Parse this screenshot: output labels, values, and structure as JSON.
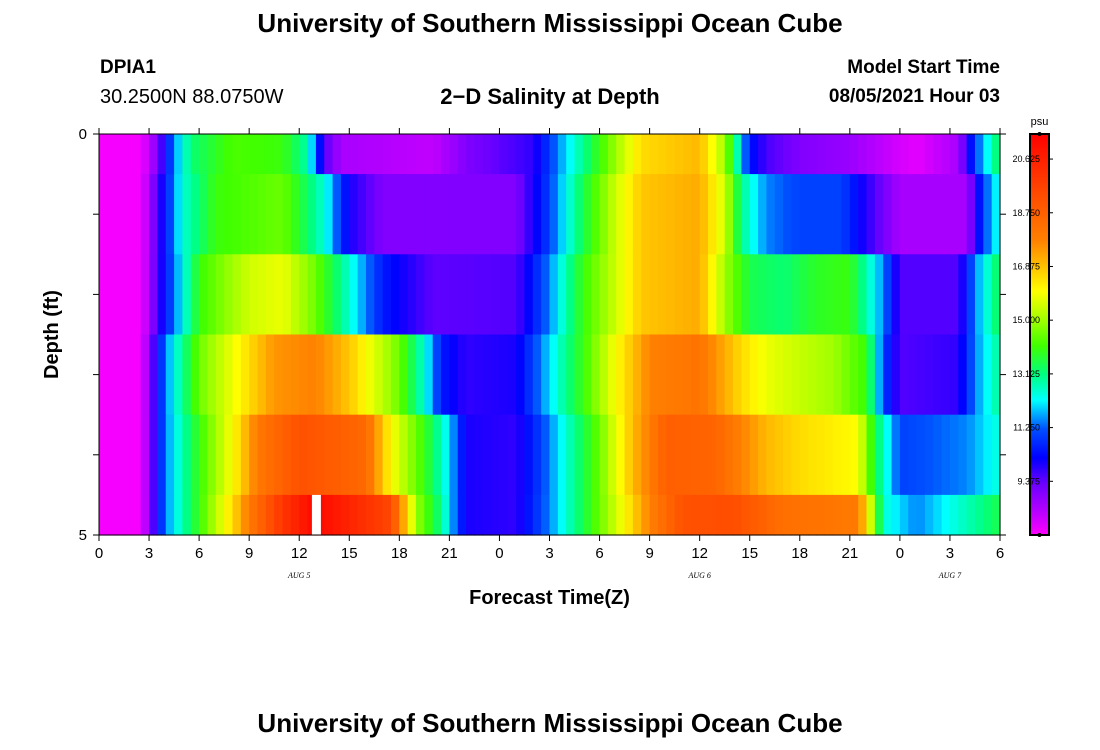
{
  "header": {
    "title": "University of Southern Mississippi Ocean Cube",
    "station_id": "DPIA1",
    "coordinates": "30.2500N  88.0750W",
    "subtitle": "2−D Salinity at Depth",
    "model_start_label": "Model Start Time",
    "model_start_value": "08/05/2021 Hour 03"
  },
  "footer": {
    "title": "University of Southern Mississippi Ocean Cube"
  },
  "chart_data": {
    "type": "heatmap",
    "title": "2-D Salinity at Depth",
    "xlabel": "Forecast Time(Z)",
    "ylabel": "Depth (ft)",
    "x_tick_labels": [
      "0",
      "3",
      "6",
      "9",
      "12",
      "15",
      "18",
      "21",
      "0",
      "3",
      "6",
      "9",
      "12",
      "15",
      "18",
      "21",
      "0",
      "3",
      "6"
    ],
    "x_hours": [
      0,
      3,
      6,
      9,
      12,
      15,
      18,
      21,
      24,
      27,
      30,
      33,
      36,
      39,
      42,
      45,
      48,
      51,
      54
    ],
    "date_labels": [
      {
        "text": "AUG 5",
        "hour": 12
      },
      {
        "text": "AUG 6",
        "hour": 36
      },
      {
        "text": "AUG 7",
        "hour": 51
      }
    ],
    "y_tick_labels": [
      "0",
      "5"
    ],
    "ylim": [
      0,
      5
    ],
    "xlim": [
      0,
      54
    ],
    "colorbar": {
      "unit": "psu",
      "labels": [
        "20.625",
        "18.750",
        "16.875",
        "15.000",
        "13.125",
        "11.250",
        "9.375"
      ],
      "range": [
        7.5,
        21.5
      ]
    },
    "layer_boundaries_ft": [
      0,
      0.5,
      1.5,
      2.5,
      3.5,
      4.5,
      5
    ],
    "layers": [
      {
        "depth_ft": 0.25,
        "keys": [
          [
            0,
            7.6
          ],
          [
            2.5,
            7.6
          ],
          [
            3.5,
            9.0
          ],
          [
            4.5,
            11.5
          ],
          [
            5.5,
            13.2
          ],
          [
            8,
            14.2
          ],
          [
            11,
            14.0
          ],
          [
            12.5,
            12.8
          ],
          [
            13.5,
            9.5
          ],
          [
            14.5,
            8.5
          ],
          [
            20,
            8.2
          ],
          [
            22,
            9.0
          ],
          [
            26,
            9.8
          ],
          [
            27.5,
            11.5
          ],
          [
            29,
            13.0
          ],
          [
            31,
            15.0
          ],
          [
            32.5,
            16.5
          ],
          [
            36,
            17.0
          ],
          [
            37.5,
            15.0
          ],
          [
            39,
            10.5
          ],
          [
            40,
            9.6
          ],
          [
            42,
            9.0
          ],
          [
            45,
            8.7
          ],
          [
            47,
            8.2
          ],
          [
            49,
            7.8
          ],
          [
            51.5,
            8.5
          ],
          [
            52.5,
            11.0
          ],
          [
            54,
            13.5
          ]
        ]
      },
      {
        "depth_ft": 1.0,
        "keys": [
          [
            0,
            7.6
          ],
          [
            2.5,
            7.6
          ],
          [
            3.5,
            9.5
          ],
          [
            5,
            12.5
          ],
          [
            7,
            14.0
          ],
          [
            11,
            14.5
          ],
          [
            13.5,
            12.5
          ],
          [
            15,
            10.0
          ],
          [
            17,
            9.0
          ],
          [
            25,
            9.0
          ],
          [
            27,
            11.0
          ],
          [
            29,
            13.5
          ],
          [
            31,
            15.5
          ],
          [
            32.5,
            16.8
          ],
          [
            36,
            17.2
          ],
          [
            37.5,
            15.5
          ],
          [
            38.5,
            13.0
          ],
          [
            40,
            11.5
          ],
          [
            42,
            11.0
          ],
          [
            44.5,
            11.0
          ],
          [
            46.5,
            9.5
          ],
          [
            48,
            8.5
          ],
          [
            52,
            8.5
          ],
          [
            53,
            11.0
          ],
          [
            54,
            12.5
          ]
        ]
      },
      {
        "depth_ft": 2.0,
        "keys": [
          [
            0,
            7.6
          ],
          [
            2.5,
            7.6
          ],
          [
            4,
            10.5
          ],
          [
            6,
            14.0
          ],
          [
            9,
            15.5
          ],
          [
            11,
            15.8
          ],
          [
            13,
            14.5
          ],
          [
            15,
            12.5
          ],
          [
            17,
            10.5
          ],
          [
            20,
            9.4
          ],
          [
            25,
            9.5
          ],
          [
            27,
            11.5
          ],
          [
            29,
            14.0
          ],
          [
            31,
            15.5
          ],
          [
            32.5,
            16.8
          ],
          [
            36,
            17.2
          ],
          [
            37.5,
            15.0
          ],
          [
            39,
            13.5
          ],
          [
            41,
            13.2
          ],
          [
            43,
            13.8
          ],
          [
            45,
            14.0
          ],
          [
            47,
            11.5
          ],
          [
            48,
            9.5
          ],
          [
            51.5,
            9.5
          ],
          [
            52.5,
            11.5
          ],
          [
            54,
            13.5
          ]
        ]
      },
      {
        "depth_ft": 3.0,
        "keys": [
          [
            0,
            7.6
          ],
          [
            2.5,
            7.6
          ],
          [
            4,
            11.5
          ],
          [
            6,
            14.5
          ],
          [
            9,
            16.5
          ],
          [
            10.5,
            17.5
          ],
          [
            13,
            17.8
          ],
          [
            15,
            16.8
          ],
          [
            18,
            14.5
          ],
          [
            19.5,
            12.5
          ],
          [
            20.5,
            10.5
          ],
          [
            22,
            9.8
          ],
          [
            25,
            10.0
          ],
          [
            27,
            12.0
          ],
          [
            29,
            14.0
          ],
          [
            31,
            16.0
          ],
          [
            33,
            17.8
          ],
          [
            36,
            18.2
          ],
          [
            38.5,
            16.5
          ],
          [
            40,
            15.8
          ],
          [
            44,
            15.0
          ],
          [
            46,
            14.0
          ],
          [
            47,
            11.0
          ],
          [
            48,
            9.5
          ],
          [
            51.5,
            9.8
          ],
          [
            52.5,
            11.5
          ],
          [
            54,
            13.0
          ]
        ]
      },
      {
        "depth_ft": 4.0,
        "keys": [
          [
            0,
            7.6
          ],
          [
            2.5,
            7.6
          ],
          [
            4,
            11.5
          ],
          [
            6,
            14.0
          ],
          [
            8,
            16.0
          ],
          [
            9.5,
            18.0
          ],
          [
            12,
            19.2
          ],
          [
            16,
            18.5
          ],
          [
            17.5,
            16.0
          ],
          [
            19.5,
            14.0
          ],
          [
            21,
            12.0
          ],
          [
            22,
            10.0
          ],
          [
            25,
            9.8
          ],
          [
            26.5,
            11.0
          ],
          [
            28,
            12.5
          ],
          [
            30,
            14.5
          ],
          [
            32,
            17.0
          ],
          [
            34,
            18.8
          ],
          [
            37,
            18.6
          ],
          [
            40,
            17.0
          ],
          [
            42,
            16.5
          ],
          [
            45.5,
            16.0
          ],
          [
            46.5,
            13.5
          ],
          [
            48,
            11.0
          ],
          [
            52,
            11.5
          ],
          [
            54,
            12.5
          ]
        ]
      },
      {
        "depth_ft": 4.75,
        "keys": [
          [
            0,
            7.6
          ],
          [
            2.5,
            7.6
          ],
          [
            4,
            11.5
          ],
          [
            6,
            14.0
          ],
          [
            8,
            16.5
          ],
          [
            9,
            18.0
          ],
          [
            11,
            20.0
          ],
          [
            13,
            21.3
          ],
          [
            15,
            20.5
          ],
          [
            17.5,
            19.5
          ],
          [
            19,
            15.0
          ],
          [
            20.5,
            13.0
          ],
          [
            22,
            10.0
          ],
          [
            25,
            9.8
          ],
          [
            27,
            11.5
          ],
          [
            29,
            13.5
          ],
          [
            31,
            15.5
          ],
          [
            33,
            17.8
          ],
          [
            35,
            19.2
          ],
          [
            38,
            19.3
          ],
          [
            41,
            18.3
          ],
          [
            45.5,
            18.0
          ],
          [
            46,
            16.5
          ],
          [
            47,
            12.5
          ],
          [
            49,
            11.5
          ],
          [
            51.5,
            12.5
          ],
          [
            54,
            13.5
          ]
        ]
      }
    ],
    "missing_cells": [
      {
        "hour": 13,
        "depth_ft": 4.75
      }
    ]
  }
}
